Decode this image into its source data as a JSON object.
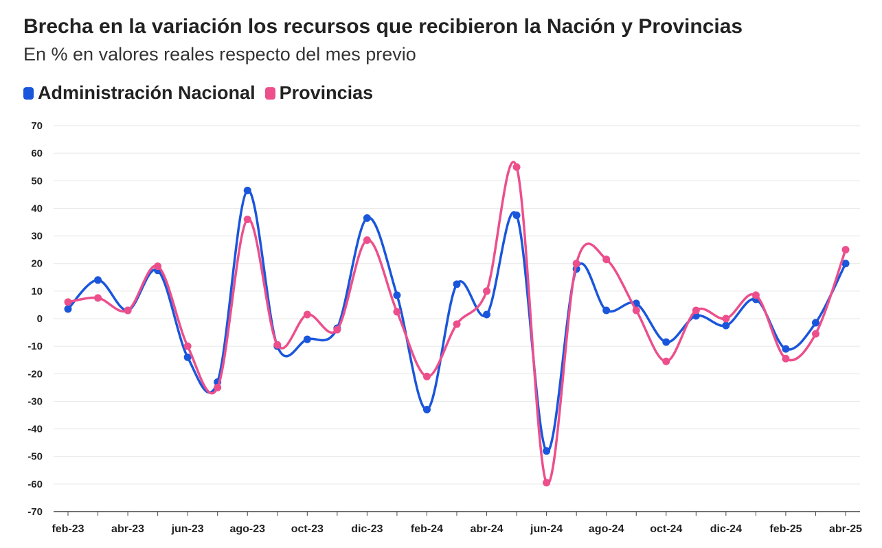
{
  "chart_data": {
    "type": "line",
    "title": "Brecha en la variación los recursos que recibieron la Nación y Provincias",
    "subtitle": "En % en valores reales respecto del mes previo",
    "x": [
      "feb-23",
      "mar-23",
      "abr-23",
      "may-23",
      "jun-23",
      "jul-23",
      "ago-23",
      "sep-23",
      "oct-23",
      "nov-23",
      "dic-23",
      "ene-24",
      "feb-24",
      "mar-24",
      "abr-24",
      "may-24",
      "jun-24",
      "jul-24",
      "ago-24",
      "sep-24",
      "oct-24",
      "nov-24",
      "dic-24",
      "ene-25",
      "feb-25",
      "mar-25",
      "abr-25"
    ],
    "x_tick_labels": [
      "feb-23",
      "abr-23",
      "jun-23",
      "ago-23",
      "oct-23",
      "dic-23",
      "feb-24",
      "abr-24",
      "jun-24",
      "ago-24",
      "oct-24",
      "dic-24",
      "feb-25",
      "abr-25"
    ],
    "ylim": [
      -70,
      70
    ],
    "y_ticks": [
      "70",
      "60",
      "50",
      "40",
      "30",
      "20",
      "10",
      "0",
      "-10",
      "-20",
      "-30",
      "-40",
      "-50",
      "-60",
      "-70"
    ],
    "grid": true,
    "legend_position": "top-left",
    "series": [
      {
        "name": "Administración Nacional",
        "color": "#1a56db",
        "values": [
          3.5,
          14,
          3,
          17.5,
          -14,
          -23,
          46.5,
          -10,
          -7.5,
          -3.5,
          36.5,
          8.5,
          -33,
          12.5,
          1.5,
          37.5,
          -48,
          18,
          3,
          5.5,
          -8.5,
          1,
          -2.5,
          7,
          -11,
          -1.5,
          20
        ]
      },
      {
        "name": "Provincias",
        "color": "#ec4f8c",
        "values": [
          6,
          7.5,
          3,
          19,
          -10,
          -25,
          36,
          -9.5,
          1.5,
          -4,
          28.5,
          2.5,
          -21,
          -2,
          10,
          55,
          -59.5,
          20,
          21.5,
          3,
          -15.5,
          3,
          0,
          8.5,
          -14.5,
          -5.5,
          25
        ]
      }
    ]
  }
}
